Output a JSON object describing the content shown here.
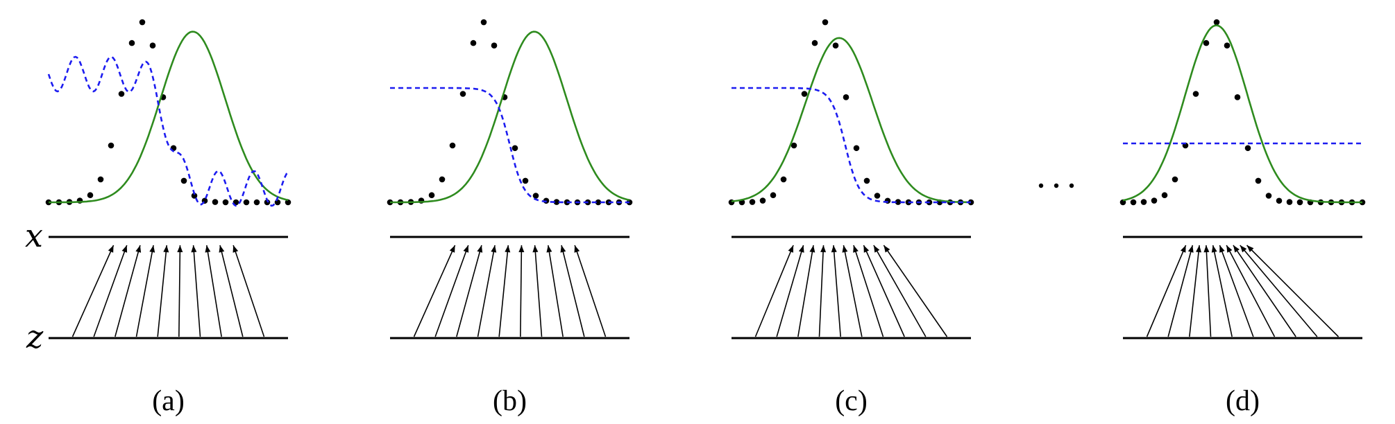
{
  "axis_labels": {
    "x": "x",
    "z": "z"
  },
  "colors": {
    "generator_density": "#2e8b1e",
    "discriminator": "#1c1cf0",
    "data_distribution": "#000000"
  },
  "panels": [
    {
      "id": "a",
      "caption": "(a)",
      "generator_shift": 1.25,
      "generator_width": 0.85,
      "discriminator": "noisy",
      "arrow_spread": 0.0
    },
    {
      "id": "b",
      "caption": "(b)",
      "generator_shift": 1.25,
      "generator_width": 0.85,
      "discriminator": "sigmoid-wide",
      "arrow_spread": 0.0
    },
    {
      "id": "c",
      "caption": "(c)",
      "generator_shift": 0.35,
      "generator_width": 0.75,
      "discriminator": "sigmoid-near",
      "arrow_spread": 0.5
    },
    {
      "id": "d",
      "caption": "(d)",
      "generator_shift": 0.0,
      "generator_width": 0.95,
      "discriminator": "flat",
      "arrow_spread": 1.0
    }
  ],
  "ellipsis": "…"
}
